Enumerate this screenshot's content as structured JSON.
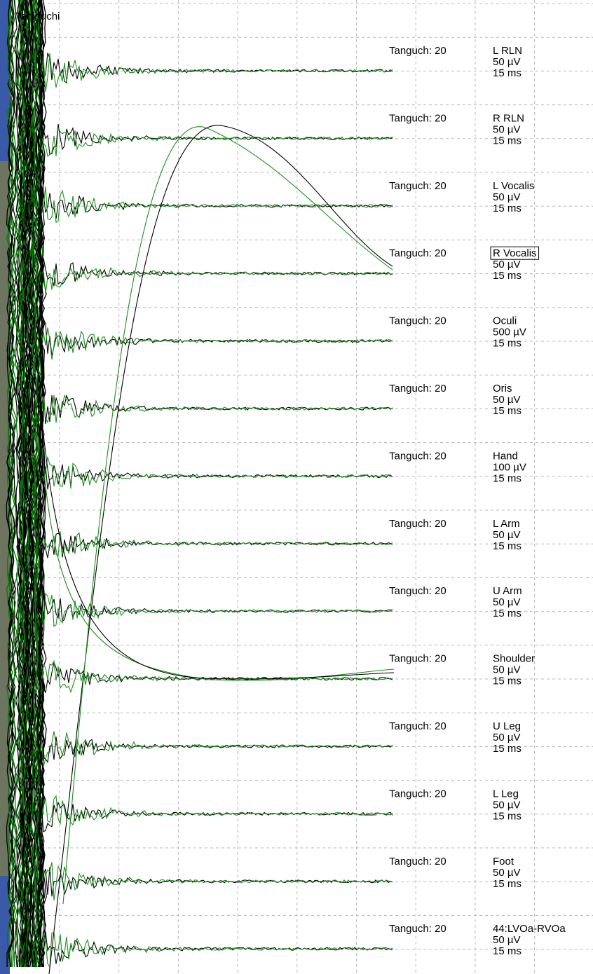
{
  "header": {
    "title": "Taniguchi"
  },
  "channels": [
    {
      "source": "Tanguch: 20",
      "name": "L RLN",
      "gain": "50 µV",
      "sweep": "15 ms"
    },
    {
      "source": "Tanguch: 20",
      "name": "R RLN",
      "gain": "50 µV",
      "sweep": "15 ms"
    },
    {
      "source": "Tanguch: 20",
      "name": "L Vocalis",
      "gain": "50 µV",
      "sweep": "15 ms"
    },
    {
      "source": "Tanguch: 20",
      "name": "R Vocalis",
      "gain": "50 µV",
      "sweep": "15 ms",
      "selected": true
    },
    {
      "source": "Tanguch: 20",
      "name": "Oculi",
      "gain": "500 µV",
      "sweep": "15 ms"
    },
    {
      "source": "Tanguch: 20",
      "name": "Oris",
      "gain": "50 µV",
      "sweep": "15 ms"
    },
    {
      "source": "Tanguch: 20",
      "name": "Hand",
      "gain": "100 µV",
      "sweep": "15 ms"
    },
    {
      "source": "Tanguch: 20",
      "name": "L Arm",
      "gain": "50 µV",
      "sweep": "15 ms"
    },
    {
      "source": "Tanguch: 20",
      "name": "U Arm",
      "gain": "50 µV",
      "sweep": "15 ms"
    },
    {
      "source": "Tanguch: 20",
      "name": "Shoulder",
      "gain": "50 µV",
      "sweep": "15 ms"
    },
    {
      "source": "Tanguch: 20",
      "name": "U Leg",
      "gain": "50 µV",
      "sweep": "15 ms"
    },
    {
      "source": "Tanguch: 20",
      "name": "L Leg",
      "gain": "50 µV",
      "sweep": "15 ms"
    },
    {
      "source": "Tanguch: 20",
      "name": "Foot",
      "gain": "50 µV",
      "sweep": "15 ms"
    },
    {
      "source": "Tanguch: 20",
      "name": "44:LVOa-RVOa",
      "gain": "50 µV",
      "sweep": "15 ms"
    }
  ]
}
